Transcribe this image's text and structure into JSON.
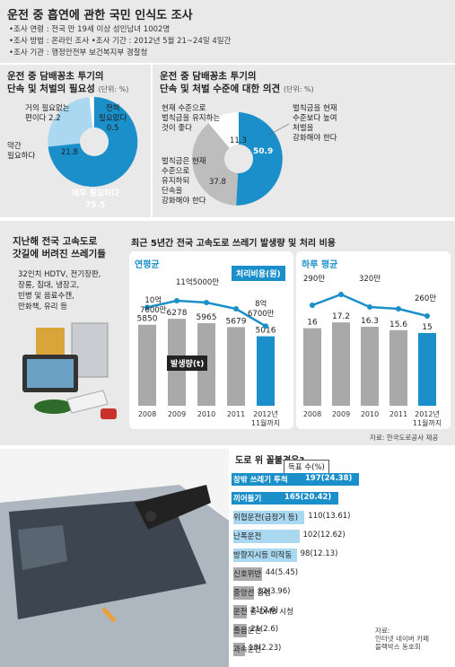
{
  "header": {
    "title": "운전 중 흡연에 관한 국민 인식도 조사",
    "lines": [
      "•조사 연령 : 전국 만 19세 이상 성인남녀 1002명",
      "•조사 방법 : 온라인 조사    •조사 기간 : 2012년 5월 21~24일 4일간",
      "•조사 기관 : 행정안전부 보건복지부 경찰청"
    ]
  },
  "pie1": {
    "title_line1": "운전 중 담배꽁초 투기의",
    "title_line2": "단속 및 처벌의 필요성",
    "unit": "(단위: %)",
    "labels": {
      "not_needed_much": "거의 필요없는\n편이다 2.2",
      "not_needed": "전혀\n필요없다\n0.5",
      "somewhat": "약간\n필요하다",
      "somewhat_val": "21.8",
      "very": "매우 필요하다",
      "very_val": "75.5"
    }
  },
  "pie2": {
    "title_line1": "운전 중 담배꽁초 투기의",
    "title_line2": "단속 및 처벌 수준에 대한 의견",
    "unit": "(단위: %)",
    "labels": {
      "keep": "현재 수준으로\n벌칙금을 유지하는\n것이 좋다",
      "keep_val": "11.3",
      "strengthen": "벌칙금을 현재\n수준보다 높여\n처벌을\n강화해야 한다",
      "strengthen_val": "50.9",
      "enforce": "벌칙금은 현재\n수준으로\n유지하되\n단속을\n강화해야 한다",
      "enforce_val": "37.8"
    }
  },
  "trash": {
    "title_line1": "지난해 전국 고속도로",
    "title_line2": "갓길에 버려진 쓰레기들",
    "items": "32인치 HDTV, 전기장판,\n장롱, 침대, 냉장고,\n빈병 및 음료수캔,\n만화책, 유리 등"
  },
  "chart_main_title": "최근 5년간 전국 고속도로 쓰레기 발생량 및 처리 비용",
  "chart_data": [
    {
      "type": "bar",
      "title": "연평균",
      "categories": [
        "2008",
        "2009",
        "2010",
        "2011",
        "2012년\n11월까지"
      ],
      "values": [
        5850,
        6278,
        5965,
        5679,
        5016
      ],
      "series_label": "발생량(t)",
      "line_label": "처리비용(원)",
      "line_labels": [
        "10억\n7600만",
        "11억5000만",
        "8억\n6700만"
      ],
      "line_values": [
        10.76,
        11.5,
        11.3,
        10.6,
        8.67
      ]
    },
    {
      "type": "bar",
      "title": "하루 평균",
      "categories": [
        "2008",
        "2009",
        "2010",
        "2011",
        "2012년\n11월까지"
      ],
      "values": [
        16,
        17.2,
        16.3,
        15.6,
        15
      ],
      "line_labels": [
        "290만",
        "320만",
        "260만"
      ],
      "line_values": [
        2.9,
        3.2,
        2.85,
        2.8,
        2.6
      ]
    },
    {
      "type": "bar",
      "title": "도로 위 꼴불견은?",
      "legend": "득표 수(%)",
      "categories": [
        "창밖 쓰레기 투척",
        "끼어들기",
        "위협운전(급정거 등)",
        "난폭운전",
        "방향지시등 미작동",
        "신호위반",
        "중앙선 침범",
        "운전 중 DMB 시청",
        "졸음운전",
        "과속운전"
      ],
      "values": [
        197,
        165,
        110,
        102,
        98,
        44,
        32,
        21,
        21,
        18
      ],
      "value_labels": [
        "197(24.38)",
        "165(20.42)",
        "110(13.61)",
        "102(12.62)",
        "98(12.13)",
        "44(5.45)",
        "32(3.96)",
        "21(2.6)",
        "21(2.6)",
        "18(2.23)"
      ]
    }
  ],
  "source1": "자료: 한국도로공사 제공",
  "source2": "자료:\n인터넷 네이버 카페\n블랙박스 동호회",
  "colors": {
    "blue": "#1a8fc9",
    "lightblue": "#a9d8f0",
    "gray": "#a9a9a9",
    "darkgray": "#7a7a7a",
    "bg": "#e9e9e9"
  }
}
